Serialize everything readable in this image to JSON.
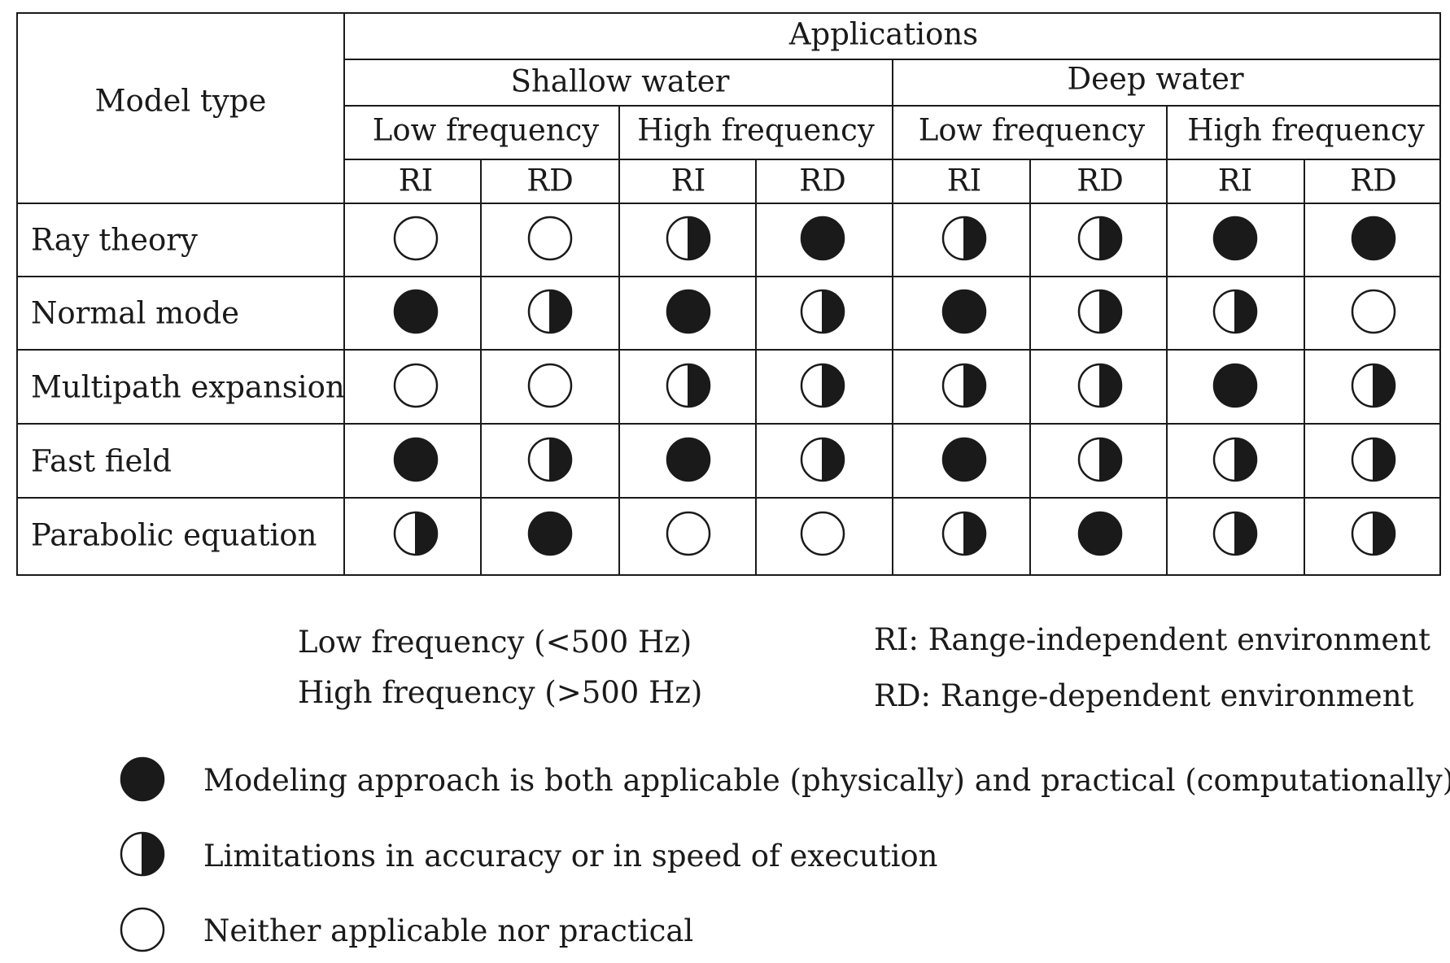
{
  "table": {
    "header": {
      "model_type": "Model type",
      "applications": "Applications",
      "water": [
        "Shallow water",
        "Deep water"
      ],
      "frequency": [
        "Low frequency",
        "High frequency",
        "Low frequency",
        "High frequency"
      ],
      "env": [
        "RI",
        "RD",
        "RI",
        "RD",
        "RI",
        "RD",
        "RI",
        "RD"
      ]
    },
    "rows": [
      {
        "label": "Ray theory",
        "cells": [
          "empty",
          "empty",
          "half",
          "full",
          "half",
          "half",
          "full",
          "full"
        ]
      },
      {
        "label": "Normal mode",
        "cells": [
          "full",
          "half",
          "full",
          "half",
          "full",
          "half",
          "half",
          "empty"
        ]
      },
      {
        "label": "Multipath expansion",
        "cells": [
          "empty",
          "empty",
          "half",
          "half",
          "half",
          "half",
          "full",
          "half"
        ]
      },
      {
        "label": "Fast field",
        "cells": [
          "full",
          "half",
          "full",
          "half",
          "full",
          "half",
          "half",
          "half"
        ]
      },
      {
        "label": "Parabolic equation",
        "cells": [
          "half",
          "full",
          "empty",
          "empty",
          "half",
          "full",
          "half",
          "half"
        ]
      }
    ]
  },
  "notes": {
    "low_freq": "Low frequency (<500 Hz)",
    "high_freq": "High frequency (>500 Hz)",
    "ri": "RI: Range-independent environment",
    "rd": "RD: Range-dependent environment"
  },
  "legend": [
    {
      "symbol": "full",
      "text": "Modeling approach is both applicable (physically) and practical (computationally)"
    },
    {
      "symbol": "half",
      "text": "Limitations in accuracy or in speed of execution"
    },
    {
      "symbol": "empty",
      "text": "Neither applicable nor practical"
    }
  ]
}
